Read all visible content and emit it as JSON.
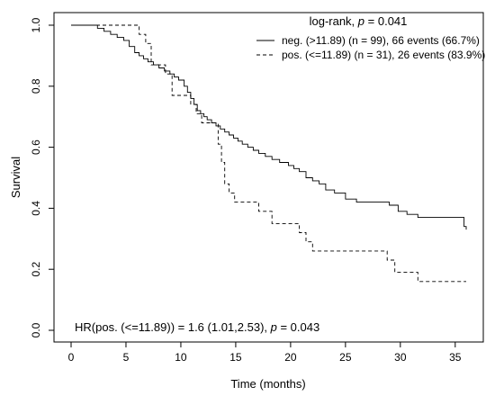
{
  "chart_data": {
    "type": "line",
    "title": "",
    "xlabel": "Time (months)",
    "ylabel": "Survival",
    "xlim": [
      0,
      36
    ],
    "ylim": [
      0,
      1
    ],
    "xticks": [
      0,
      5,
      10,
      15,
      20,
      25,
      30,
      35
    ],
    "yticks": [
      0.0,
      0.2,
      0.4,
      0.6,
      0.8,
      1.0
    ],
    "ytick_labels": [
      "0.0",
      "0.2",
      "0.4",
      "0.6",
      "0.8",
      "1.0"
    ],
    "grid": false,
    "legend_placement": "top-right",
    "logrank": {
      "prefix": "log-rank, ",
      "p_symbol": "p",
      "value": " = 0.041"
    },
    "hr_annotation": {
      "prefix": "HR(pos. (<=11.89)) = 1.6 (1.01,2.53), ",
      "p_symbol": "p",
      "value": " = 0.043"
    },
    "series": [
      {
        "name": "neg. (>11.89) (n = 99), 66 events (66.7%)",
        "line_style": "solid",
        "x": [
          0,
          2.4,
          3.0,
          3.6,
          4.2,
          4.8,
          5.3,
          5.8,
          6.2,
          6.6,
          7.0,
          7.5,
          8.0,
          8.5,
          9.0,
          9.4,
          9.8,
          10.3,
          10.6,
          10.9,
          11.2,
          11.5,
          11.8,
          12.1,
          12.4,
          12.8,
          13.2,
          13.6,
          14.0,
          14.4,
          14.8,
          15.2,
          15.6,
          16.1,
          16.6,
          17.1,
          17.7,
          18.3,
          19.0,
          19.8,
          20.3,
          20.8,
          21.4,
          22.0,
          22.6,
          23.2,
          24.0,
          25.0,
          26.0,
          29.0,
          29.8,
          30.6,
          31.6,
          35.8,
          36.0
        ],
        "y": [
          1.0,
          0.99,
          0.98,
          0.97,
          0.96,
          0.95,
          0.93,
          0.91,
          0.9,
          0.89,
          0.88,
          0.87,
          0.86,
          0.85,
          0.84,
          0.83,
          0.82,
          0.8,
          0.78,
          0.76,
          0.74,
          0.72,
          0.71,
          0.7,
          0.69,
          0.68,
          0.67,
          0.66,
          0.65,
          0.64,
          0.63,
          0.62,
          0.61,
          0.6,
          0.59,
          0.58,
          0.57,
          0.56,
          0.55,
          0.54,
          0.53,
          0.52,
          0.5,
          0.49,
          0.48,
          0.46,
          0.45,
          0.43,
          0.42,
          0.41,
          0.39,
          0.38,
          0.37,
          0.34,
          0.33
        ]
      },
      {
        "name": "pos. (<=11.89) (n = 31), 26 events (83.9%)",
        "line_style": "dashed",
        "x": [
          0,
          6.2,
          6.8,
          7.3,
          8.6,
          9.2,
          10.9,
          11.4,
          11.9,
          13.4,
          13.7,
          14.0,
          14.4,
          14.9,
          17.1,
          18.3,
          20.8,
          21.4,
          22.0,
          28.8,
          29.5,
          31.6,
          36.0
        ],
        "y": [
          1.0,
          0.97,
          0.94,
          0.87,
          0.84,
          0.77,
          0.74,
          0.71,
          0.68,
          0.61,
          0.55,
          0.48,
          0.45,
          0.42,
          0.39,
          0.35,
          0.32,
          0.29,
          0.26,
          0.23,
          0.19,
          0.16,
          0.16
        ]
      }
    ]
  }
}
